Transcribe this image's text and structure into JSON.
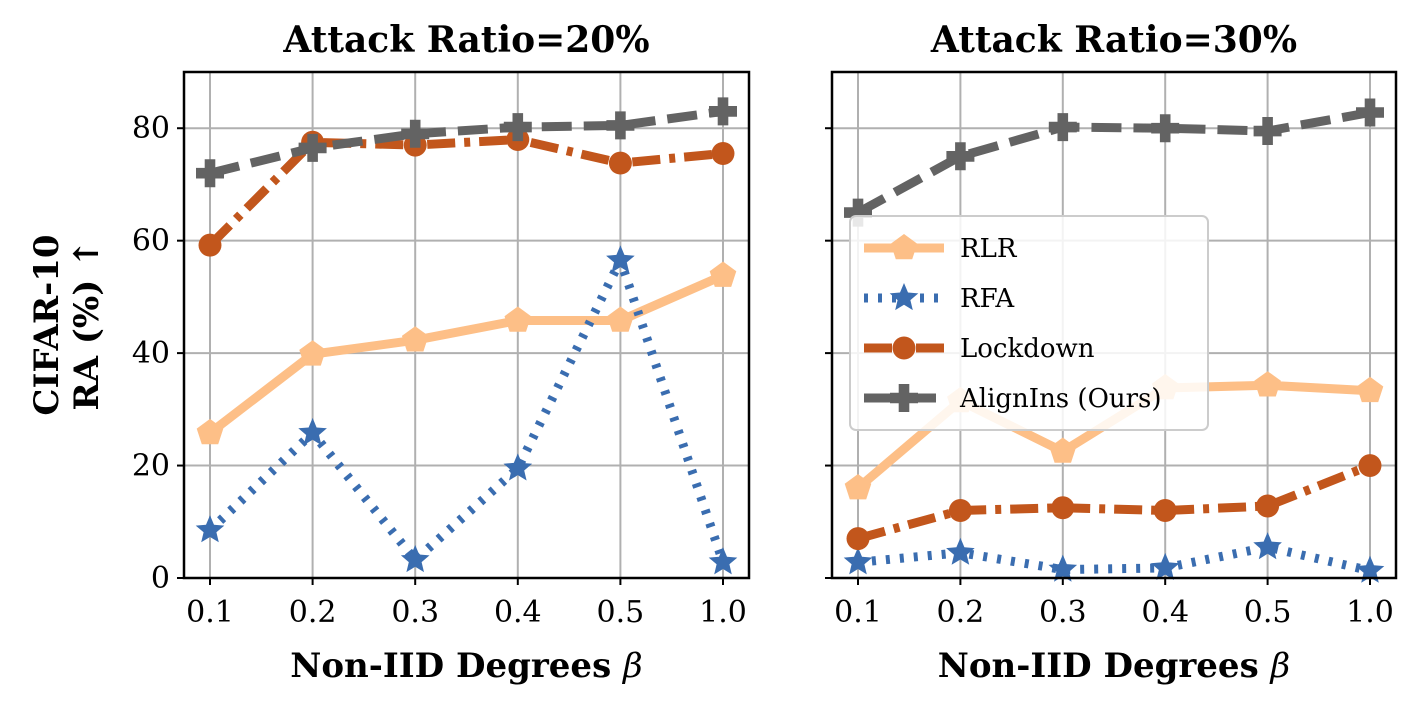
{
  "ylabel_line1": "CIFAR-10",
  "ylabel_line2": "RA (%) ↑",
  "chart_data": [
    {
      "type": "line",
      "title": "Attack Ratio=20%",
      "xlabel": "Non-IID Degrees",
      "xlabel_symbol": "β",
      "categories": [
        "0.1",
        "0.2",
        "0.3",
        "0.4",
        "0.5",
        "1.0"
      ],
      "ylim": [
        0,
        90
      ],
      "yticks": [
        0,
        20,
        40,
        60,
        80
      ],
      "grid": true,
      "legend": "none",
      "series": [
        {
          "name": "RLR",
          "values": [
            25.8,
            39.8,
            42.3,
            45.8,
            45.8,
            53.8
          ]
        },
        {
          "name": "RFA",
          "values": [
            8.5,
            25.8,
            3.2,
            19.5,
            56.5,
            2.8
          ]
        },
        {
          "name": "Lockdown",
          "values": [
            59.2,
            77.5,
            77.0,
            78.0,
            73.8,
            75.5
          ]
        },
        {
          "name": "AlignIns (Ours)",
          "values": [
            72.0,
            76.5,
            79.0,
            80.2,
            80.5,
            83.0
          ]
        }
      ]
    },
    {
      "type": "line",
      "title": "Attack Ratio=30%",
      "xlabel": "Non-IID Degrees",
      "xlabel_symbol": "β",
      "categories": [
        "0.1",
        "0.2",
        "0.3",
        "0.4",
        "0.5",
        "1.0"
      ],
      "ylim": [
        0,
        90
      ],
      "yticks": [
        0,
        20,
        40,
        60,
        80
      ],
      "grid": true,
      "legend": "center-left",
      "series": [
        {
          "name": "RLR",
          "values": [
            16.0,
            31.5,
            22.5,
            33.8,
            34.3,
            33.3
          ]
        },
        {
          "name": "RFA",
          "values": [
            2.8,
            4.5,
            1.5,
            1.8,
            5.5,
            1.3
          ]
        },
        {
          "name": "Lockdown",
          "values": [
            7.0,
            12.0,
            12.5,
            12.0,
            12.8,
            20.0
          ]
        },
        {
          "name": "AlignIns (Ours)",
          "values": [
            65.0,
            75.0,
            80.2,
            80.0,
            79.5,
            82.8
          ]
        }
      ]
    }
  ],
  "styles": {
    "RLR": {
      "color": "#FDBF87",
      "dash": "",
      "marker": "pentagon"
    },
    "RFA": {
      "color": "#3A6DB0",
      "dash": "dotted",
      "marker": "star"
    },
    "Lockdown": {
      "color": "#C2561C",
      "dash": "dashdot",
      "marker": "circle"
    },
    "AlignIns (Ours)": {
      "color": "#636363",
      "dash": "dashed",
      "marker": "plus"
    }
  }
}
